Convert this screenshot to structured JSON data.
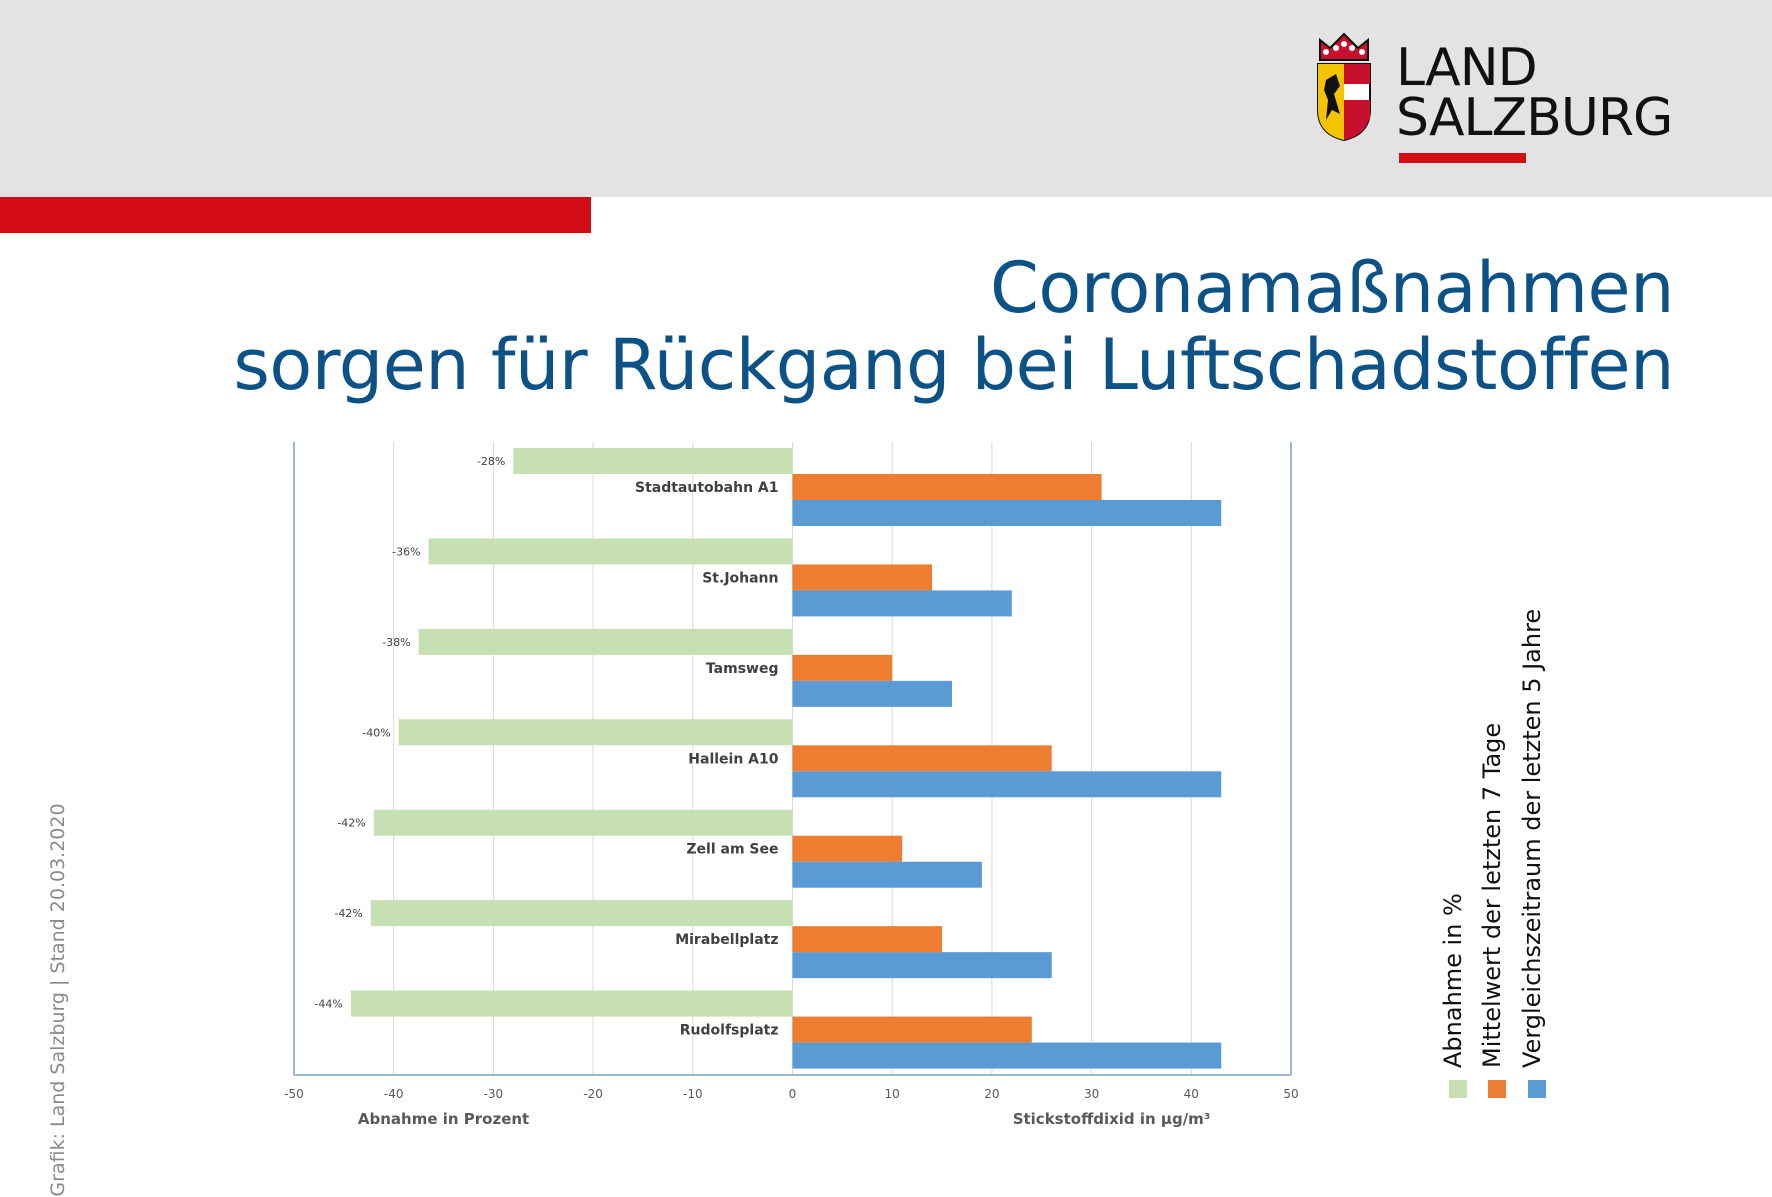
{
  "header": {
    "logo": {
      "name": "land-salzburg-logo",
      "line1": "LAND",
      "line2": "SALZBURG"
    },
    "accent_color": "#d30c15"
  },
  "title": {
    "line1": "Coronamaßnahmen",
    "line2": "sorgen für Rückgang bei Luftschadstoffen",
    "color": "#0d5286"
  },
  "credit": "Grafik: Land Salzburg | Stand 20.03.2020",
  "legend": [
    {
      "label": "Abnahme in %",
      "color": "#c6e0b4"
    },
    {
      "label": "Mittelwert der letzten 7 Tage",
      "color": "#ed7d31"
    },
    {
      "label": "Vergleichszeitraum der letzten 5 Jahre",
      "color": "#5b9bd5"
    }
  ],
  "chart_data": {
    "type": "bar",
    "orientation": "horizontal",
    "categories": [
      "Stadtautobahn A1",
      "St.Johann",
      "Tamsweg",
      "Hallein A10",
      "Zell am See",
      "Mirabellplatz",
      "Rudolfsplatz"
    ],
    "series": [
      {
        "name": "Abnahme in %",
        "values": [
          -28,
          -36.5,
          -37.5,
          -39.5,
          -42,
          -42.3,
          -44.3
        ],
        "data_labels": [
          "-28%",
          "-36%",
          "-38%",
          "-40%",
          "-42%",
          "-42%",
          "-44%"
        ],
        "color": "#c6e0b4"
      },
      {
        "name": "Mittelwert der letzten 7 Tage",
        "values": [
          31,
          14,
          10,
          26,
          11,
          15,
          24
        ],
        "color": "#ed7d31"
      },
      {
        "name": "Vergleichszeitraum der letzten 5 Jahre",
        "values": [
          43,
          22,
          16,
          43,
          19,
          26,
          43
        ],
        "color": "#5b9bd5"
      }
    ],
    "xlim": [
      -50,
      50
    ],
    "xticks": [
      -50,
      -40,
      -30,
      -20,
      -10,
      0,
      10,
      20,
      30,
      40,
      50
    ],
    "xlabel_left": "Abnahme in Prozent",
    "xlabel_right": "Stickstoffdixid in µg/m³",
    "grid": true,
    "legend_position": "right"
  }
}
